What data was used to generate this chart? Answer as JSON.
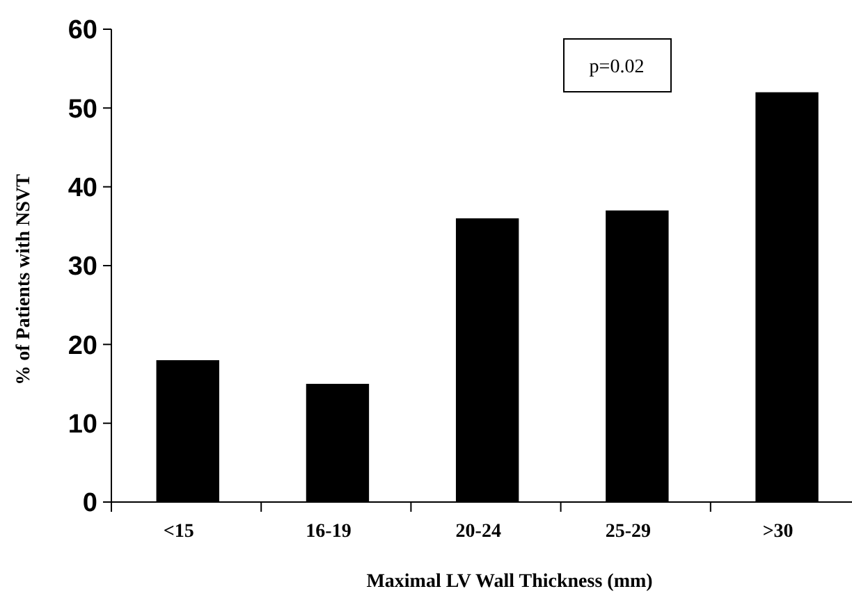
{
  "chart_data": {
    "type": "bar",
    "xlabel": "Maximal LV Wall Thickness (mm)",
    "ylabel": "% of Patients with NSVT",
    "categories": [
      "<15",
      "16-19",
      "20-24",
      "25-29",
      ">30"
    ],
    "values": [
      18,
      15,
      36,
      37,
      52
    ],
    "color": "#000000",
    "ylim": [
      0,
      60
    ],
    "yticks": [
      0,
      10,
      20,
      30,
      40,
      50,
      60
    ],
    "grid": false,
    "annotations": [
      "p=0.02"
    ]
  }
}
